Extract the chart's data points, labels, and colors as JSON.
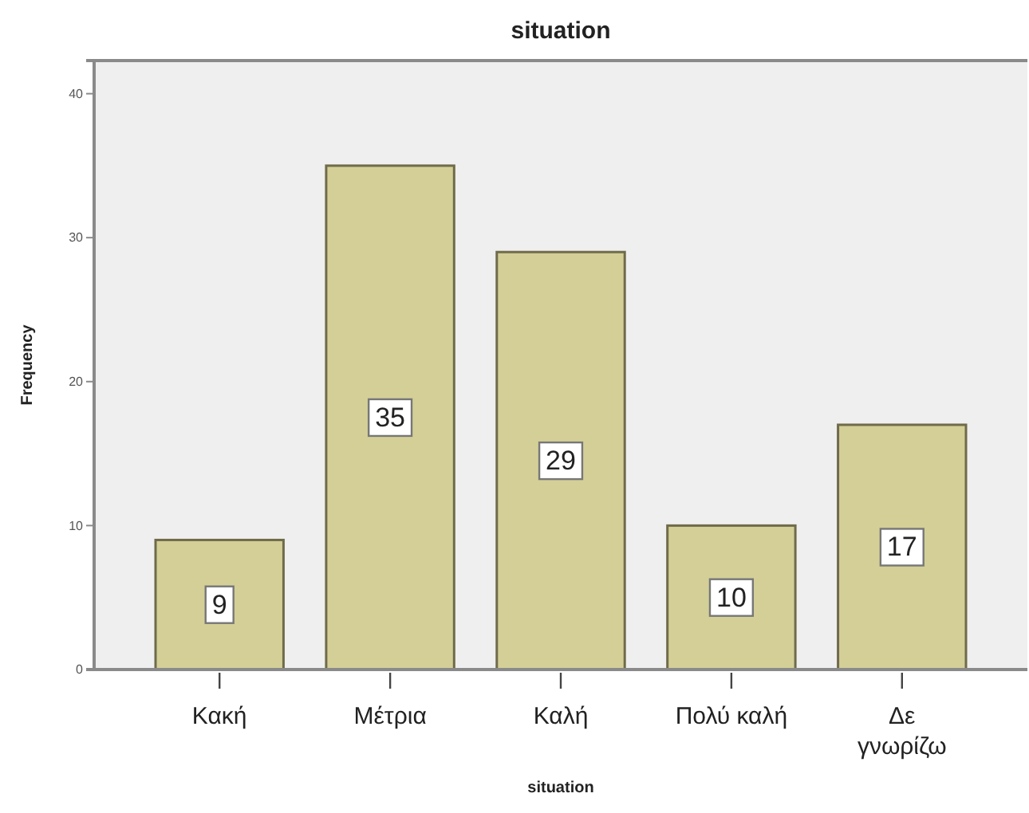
{
  "chart_data": {
    "type": "bar",
    "title": "situation",
    "xlabel": "situation",
    "ylabel": "Frequency",
    "categories": [
      "Κακή",
      "Μέτρια",
      "Καλή",
      "Πολύ καλή",
      "Δε\nγνωρίζω"
    ],
    "values": [
      9,
      35,
      29,
      10,
      17
    ],
    "color": "#d3cf97",
    "ylim": [
      0,
      42.3
    ],
    "yticks": [
      0,
      10,
      20,
      30,
      40
    ],
    "grid": false,
    "data_labels": true
  }
}
